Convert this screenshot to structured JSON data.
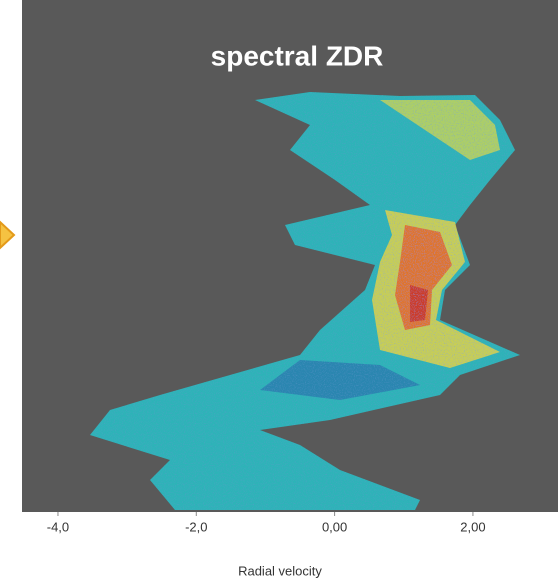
{
  "chart_data": {
    "type": "spectrogram",
    "title": "spectral ZDR",
    "xlabel": "Radial velocity",
    "xlim": [
      -4.52,
      3.23
    ],
    "xticks": [
      {
        "value": -4,
        "label": "-4,0"
      },
      {
        "value": -2,
        "label": "-2,0"
      },
      {
        "value": 0,
        "label": "0,00"
      },
      {
        "value": 2,
        "label": "2,00"
      }
    ]
  }
}
